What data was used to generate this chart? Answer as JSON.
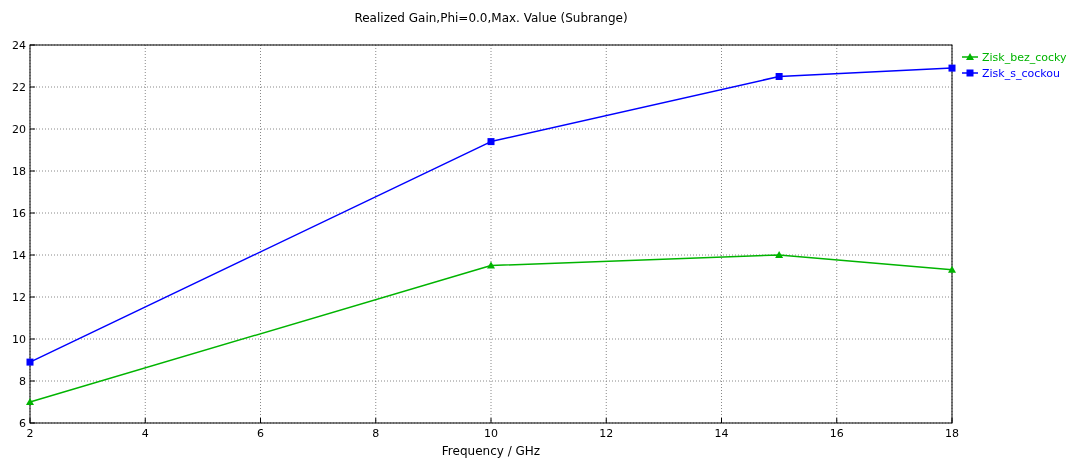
{
  "chart_data": {
    "type": "line",
    "title": "Realized Gain,Phi=0.0,Max. Value (Subrange)",
    "xlabel": "Frequency / GHz",
    "x": [
      2,
      10,
      15,
      18
    ],
    "series": [
      {
        "name": "Zisk_bez_cocky",
        "color": "#00b400",
        "marker": "triangle",
        "values": [
          7.0,
          13.5,
          14.0,
          13.3
        ]
      },
      {
        "name": "Zisk_s_cockou",
        "color": "#0000ff",
        "marker": "square",
        "values": [
          8.9,
          19.4,
          22.5,
          22.9
        ]
      }
    ],
    "xlim": [
      2,
      18
    ],
    "xticks": [
      2,
      4,
      6,
      8,
      10,
      12,
      14,
      16,
      18
    ],
    "ylim": [
      6,
      24
    ],
    "yticks": [
      6,
      8,
      10,
      12,
      14,
      16,
      18,
      20,
      22,
      24
    ],
    "grid": true,
    "legend": "top right",
    "line_style": "solid"
  }
}
